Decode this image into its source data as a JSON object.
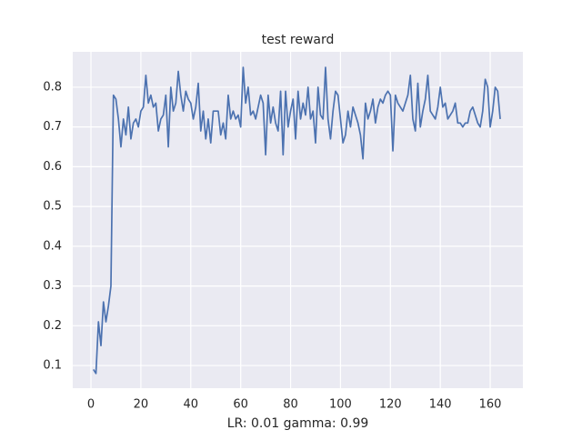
{
  "chart_data": {
    "type": "line",
    "title": "test reward",
    "x_label": "LR: 0.01 gamma: 0.99",
    "x": [
      1,
      2,
      3,
      4,
      5,
      6,
      7,
      8,
      9,
      10,
      11,
      12,
      13,
      14,
      15,
      16,
      17,
      18,
      19,
      20,
      21,
      22,
      23,
      24,
      25,
      26,
      27,
      28,
      29,
      30,
      31,
      32,
      33,
      34,
      35,
      36,
      37,
      38,
      39,
      40,
      41,
      42,
      43,
      44,
      45,
      46,
      47,
      48,
      49,
      50,
      51,
      52,
      53,
      54,
      55,
      56,
      57,
      58,
      59,
      60,
      61,
      62,
      63,
      64,
      65,
      66,
      67,
      68,
      69,
      70,
      71,
      72,
      73,
      74,
      75,
      76,
      77,
      78,
      79,
      80,
      81,
      82,
      83,
      84,
      85,
      86,
      87,
      88,
      89,
      90,
      91,
      92,
      93,
      94,
      95,
      96,
      97,
      98,
      99,
      100,
      101,
      102,
      103,
      104,
      105,
      106,
      107,
      108,
      109,
      110,
      111,
      112,
      113,
      114,
      115,
      116,
      117,
      118,
      119,
      120,
      121,
      122,
      123,
      124,
      125,
      126,
      127,
      128,
      129,
      130,
      131,
      132,
      133,
      134,
      135,
      136,
      137,
      138,
      139,
      140,
      141,
      142,
      143,
      144,
      145,
      146,
      147,
      148,
      149,
      150,
      151,
      152,
      153,
      154,
      155,
      156,
      157,
      158,
      159,
      160,
      161,
      162,
      163,
      164
    ],
    "series": [
      {
        "color": "#4c72b0",
        "values": [
          0.09,
          0.08,
          0.21,
          0.15,
          0.26,
          0.21,
          0.25,
          0.3,
          0.78,
          0.77,
          0.72,
          0.65,
          0.72,
          0.68,
          0.75,
          0.67,
          0.71,
          0.72,
          0.7,
          0.74,
          0.75,
          0.83,
          0.76,
          0.78,
          0.75,
          0.76,
          0.69,
          0.72,
          0.73,
          0.78,
          0.65,
          0.8,
          0.74,
          0.76,
          0.84,
          0.78,
          0.74,
          0.79,
          0.77,
          0.76,
          0.72,
          0.75,
          0.81,
          0.69,
          0.74,
          0.67,
          0.72,
          0.66,
          0.74,
          0.74,
          0.74,
          0.68,
          0.71,
          0.67,
          0.78,
          0.72,
          0.74,
          0.72,
          0.73,
          0.7,
          0.85,
          0.76,
          0.8,
          0.73,
          0.74,
          0.72,
          0.75,
          0.78,
          0.76,
          0.63,
          0.78,
          0.71,
          0.75,
          0.71,
          0.69,
          0.79,
          0.63,
          0.79,
          0.7,
          0.74,
          0.77,
          0.67,
          0.79,
          0.72,
          0.76,
          0.73,
          0.8,
          0.72,
          0.74,
          0.66,
          0.8,
          0.73,
          0.72,
          0.85,
          0.72,
          0.67,
          0.74,
          0.79,
          0.78,
          0.72,
          0.66,
          0.68,
          0.74,
          0.7,
          0.75,
          0.73,
          0.71,
          0.68,
          0.62,
          0.76,
          0.72,
          0.74,
          0.77,
          0.71,
          0.75,
          0.77,
          0.76,
          0.78,
          0.79,
          0.78,
          0.64,
          0.78,
          0.76,
          0.75,
          0.74,
          0.76,
          0.78,
          0.83,
          0.72,
          0.69,
          0.81,
          0.7,
          0.74,
          0.77,
          0.83,
          0.74,
          0.73,
          0.72,
          0.75,
          0.8,
          0.75,
          0.76,
          0.72,
          0.73,
          0.74,
          0.76,
          0.71,
          0.71,
          0.7,
          0.71,
          0.71,
          0.74,
          0.75,
          0.73,
          0.71,
          0.7,
          0.74,
          0.82,
          0.8,
          0.7,
          0.74,
          0.8,
          0.79,
          0.72
        ]
      }
    ],
    "xlim": [
      -7.3,
      173.1
    ],
    "ylim": [
      0.043,
      0.889
    ],
    "xticks": [
      0,
      20,
      40,
      60,
      80,
      100,
      120,
      140,
      160
    ],
    "yticks": [
      0.1,
      0.2,
      0.3,
      0.4,
      0.5,
      0.6,
      0.7,
      0.8
    ],
    "grid": true,
    "background": "#eaeaf2"
  }
}
